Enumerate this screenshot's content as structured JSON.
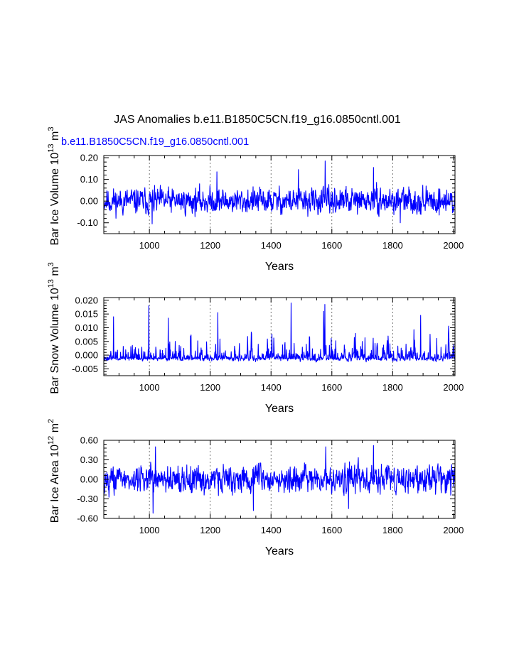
{
  "figure": {
    "title": "JAS Anomalies b.e11.B1850C5CN.f19_g16.0850cntl.001",
    "subtitle": "b.e11.B1850C5CN.f19_g16.0850cntl.001",
    "line_color": "#0000ff",
    "subtitle_color": "#0000ff"
  },
  "chart_data": [
    {
      "type": "line",
      "name": "bar-ice-volume",
      "ylabel_main": "Bar Ice Volume 10",
      "ylabel_sup1": "13",
      "ylabel_mid": " m",
      "ylabel_sup2": "3",
      "xlabel": "Years",
      "xlim": [
        850,
        2005
      ],
      "ylim": [
        -0.15,
        0.21
      ],
      "xticks": [
        1000,
        1200,
        1400,
        1600,
        1800,
        2000
      ],
      "xtick_labels": [
        "1000",
        "1200",
        "1400",
        "1600",
        "1800",
        "2000"
      ],
      "yticks": [
        -0.1,
        0.0,
        0.1,
        0.2
      ],
      "ytick_labels": [
        "-0.10",
        "0.00",
        "0.10",
        "0.20"
      ],
      "vgrid_dashed": [
        1000,
        1200,
        1400,
        1600,
        1800
      ],
      "series_seed": 11,
      "series_amplitude": 0.045,
      "series_baseline": 0.0,
      "series_skew": 0,
      "peaks": [
        [
          1578,
          0.185
        ],
        [
          1737,
          0.155
        ],
        [
          1490,
          0.145
        ],
        [
          1222,
          0.135
        ],
        [
          1009,
          -0.105
        ],
        [
          1825,
          -0.1
        ]
      ]
    },
    {
      "type": "line",
      "name": "bar-snow-volume",
      "ylabel_main": "Bar Snow Volume 10",
      "ylabel_sup1": "13",
      "ylabel_mid": " m",
      "ylabel_sup2": "3",
      "xlabel": "Years",
      "xlim": [
        850,
        2005
      ],
      "ylim": [
        -0.0075,
        0.021
      ],
      "xticks": [
        1000,
        1200,
        1400,
        1600,
        1800,
        2000
      ],
      "xtick_labels": [
        "1000",
        "1200",
        "1400",
        "1600",
        "1800",
        "2000"
      ],
      "yticks": [
        -0.005,
        0.0,
        0.005,
        0.01,
        0.015,
        0.02
      ],
      "ytick_labels": [
        "-0.005",
        "0.000",
        "0.005",
        "0.010",
        "0.015",
        "0.020"
      ],
      "vgrid_dashed": [
        1000,
        1200,
        1400,
        1600,
        1800
      ],
      "series_seed": 27,
      "series_amplitude": 0.0022,
      "series_baseline": -0.0005,
      "series_skew": 1,
      "peaks": [
        [
          1466,
          0.019
        ],
        [
          1577,
          0.0185
        ],
        [
          998,
          0.018
        ],
        [
          1573,
          0.016
        ],
        [
          1225,
          0.0155
        ],
        [
          882,
          0.014
        ],
        [
          1892,
          0.0145
        ],
        [
          1062,
          0.0135
        ]
      ]
    },
    {
      "type": "line",
      "name": "bar-ice-area",
      "ylabel_main": "Bar Ice Area 10",
      "ylabel_sup1": "12",
      "ylabel_mid": " m",
      "ylabel_sup2": "2",
      "xlabel": "Years",
      "xlim": [
        850,
        2005
      ],
      "ylim": [
        -0.6,
        0.6
      ],
      "xticks": [
        1000,
        1200,
        1400,
        1600,
        1800,
        2000
      ],
      "xtick_labels": [
        "1000",
        "1200",
        "1400",
        "1600",
        "1800",
        "2000"
      ],
      "yticks": [
        -0.6,
        -0.3,
        0.0,
        0.3,
        0.6
      ],
      "ytick_labels": [
        "-0.60",
        "-0.30",
        "0.00",
        "0.30",
        "0.60"
      ],
      "vgrid_dashed": [
        1000,
        1200,
        1400,
        1600,
        1800
      ],
      "series_seed": 43,
      "series_amplitude": 0.16,
      "series_baseline": 0.0,
      "series_skew": 0,
      "peaks": [
        [
          1737,
          0.52
        ],
        [
          1580,
          0.5
        ],
        [
          1020,
          0.5
        ],
        [
          1012,
          -0.52
        ],
        [
          1342,
          -0.48
        ],
        [
          1655,
          -0.45
        ]
      ]
    }
  ]
}
